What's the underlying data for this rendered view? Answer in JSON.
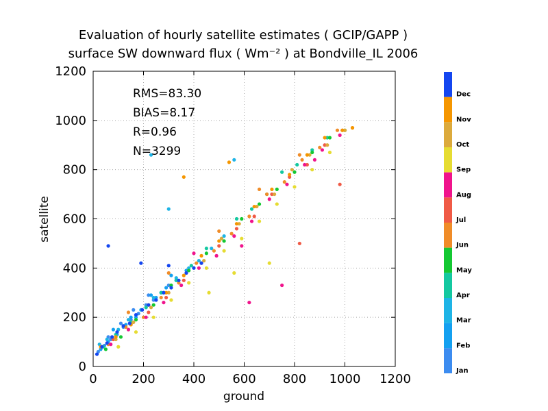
{
  "chart_data": {
    "type": "scatter",
    "title": "Evaluation of hourly satellite estimates ( GCIP/GAPP )",
    "subtitle": "surface SW downward flux ( Wm⁻² ) at Bondville_IL 2006",
    "xlabel": "ground",
    "ylabel": "satellite",
    "xlim": [
      0,
      1200
    ],
    "ylim": [
      0,
      1200
    ],
    "xticks": [
      "0",
      "200",
      "400",
      "600",
      "800",
      "1000",
      "1200"
    ],
    "yticks": [
      "0",
      "200",
      "400",
      "600",
      "800",
      "1000",
      "1200"
    ],
    "grid": true,
    "stats": [
      "RMS=83.30",
      "BIAS=8.17",
      "R=0.96",
      "N=3299"
    ],
    "legend_placement": "right",
    "legend": [
      {
        "label": "Jan",
        "color": "#3c8cf0"
      },
      {
        "label": "Feb",
        "color": "#14a0f0"
      },
      {
        "label": "Mar",
        "color": "#1eb4e6"
      },
      {
        "label": "Apr",
        "color": "#14c8a0"
      },
      {
        "label": "May",
        "color": "#14c832"
      },
      {
        "label": "Jun",
        "color": "#f08c28"
      },
      {
        "label": "Jul",
        "color": "#f05a46"
      },
      {
        "label": "Aug",
        "color": "#f0148c"
      },
      {
        "label": "Sep",
        "color": "#e6dc32"
      },
      {
        "label": "Oct",
        "color": "#dcaa3c"
      },
      {
        "label": "Nov",
        "color": "#f59600"
      },
      {
        "label": "Dec",
        "color": "#1446f0"
      }
    ],
    "series": [
      {
        "month": "Jan",
        "x": [
          20,
          45,
          70,
          95,
          120,
          150,
          180,
          210,
          240,
          270,
          300,
          60,
          110,
          160,
          220
        ],
        "y": [
          60,
          85,
          110,
          130,
          160,
          190,
          215,
          250,
          270,
          300,
          330,
          120,
          175,
          230,
          290
        ]
      },
      {
        "month": "Feb",
        "x": [
          30,
          60,
          90,
          130,
          170,
          210,
          250,
          290,
          330,
          370,
          80,
          150,
          230,
          310
        ],
        "y": [
          70,
          100,
          120,
          170,
          200,
          240,
          280,
          320,
          350,
          390,
          150,
          200,
          290,
          370
        ]
      },
      {
        "month": "Mar",
        "x": [
          25,
          55,
          100,
          140,
          190,
          240,
          280,
          330,
          380,
          420,
          470,
          520,
          230,
          300,
          560
        ],
        "y": [
          90,
          110,
          150,
          190,
          230,
          280,
          300,
          360,
          400,
          430,
          480,
          530,
          860,
          640,
          840
        ]
      },
      {
        "month": "Apr",
        "x": [
          40,
          90,
          150,
          210,
          270,
          330,
          390,
          450,
          510,
          570,
          630,
          690,
          750,
          810,
          870,
          930
        ],
        "y": [
          80,
          130,
          180,
          240,
          300,
          350,
          410,
          480,
          520,
          600,
          640,
          700,
          790,
          820,
          880,
          930
        ]
      },
      {
        "month": "May",
        "x": [
          50,
          110,
          170,
          240,
          310,
          380,
          450,
          520,
          590,
          660,
          730,
          800,
          870,
          940,
          1000
        ],
        "y": [
          70,
          120,
          190,
          250,
          330,
          390,
          460,
          510,
          600,
          660,
          720,
          790,
          870,
          930,
          960
        ]
      },
      {
        "month": "Jun",
        "x": [
          60,
          130,
          200,
          270,
          340,
          410,
          480,
          550,
          620,
          690,
          760,
          830,
          900,
          970,
          1030,
          140,
          300,
          500,
          660,
          820
        ],
        "y": [
          90,
          160,
          200,
          280,
          340,
          420,
          470,
          540,
          610,
          700,
          750,
          840,
          890,
          960,
          970,
          220,
          380,
          550,
          720,
          860
        ]
      },
      {
        "month": "Jul",
        "x": [
          80,
          150,
          220,
          290,
          360,
          430,
          500,
          570,
          640,
          710,
          780,
          850,
          920,
          990,
          820,
          980
        ],
        "y": [
          110,
          170,
          220,
          280,
          350,
          420,
          490,
          560,
          610,
          700,
          770,
          820,
          900,
          960,
          500,
          740
        ]
      },
      {
        "month": "Aug",
        "x": [
          70,
          140,
          210,
          280,
          350,
          420,
          490,
          560,
          630,
          700,
          770,
          840,
          910,
          980,
          620,
          750,
          400,
          590,
          880
        ],
        "y": [
          90,
          150,
          200,
          260,
          330,
          400,
          450,
          530,
          590,
          680,
          740,
          820,
          880,
          940,
          260,
          330,
          460,
          490,
          840
        ]
      },
      {
        "month": "Sep",
        "x": [
          100,
          170,
          240,
          310,
          380,
          450,
          520,
          590,
          660,
          730,
          800,
          870,
          940,
          460,
          560,
          700
        ],
        "y": [
          80,
          140,
          200,
          270,
          340,
          400,
          470,
          520,
          590,
          660,
          730,
          800,
          870,
          300,
          380,
          420
        ]
      },
      {
        "month": "Oct",
        "x": [
          90,
          160,
          230,
          300,
          370,
          440,
          510,
          580,
          650,
          720,
          790,
          860,
          930,
          1000
        ],
        "y": [
          110,
          180,
          240,
          300,
          380,
          430,
          520,
          580,
          650,
          700,
          800,
          860,
          900,
          960
        ]
      },
      {
        "month": "Nov",
        "x": [
          30,
          90,
          150,
          220,
          290,
          360,
          430,
          500,
          570,
          640,
          710,
          780,
          850,
          920,
          990,
          1030,
          360,
          540
        ],
        "y": [
          80,
          120,
          170,
          250,
          300,
          370,
          450,
          510,
          580,
          650,
          720,
          780,
          860,
          930,
          960,
          970,
          770,
          830
        ]
      },
      {
        "month": "Dec",
        "x": [
          15,
          35,
          55,
          75,
          95,
          120,
          145,
          170,
          195,
          220,
          250,
          280,
          310,
          340,
          370,
          400,
          430,
          60,
          190,
          300
        ],
        "y": [
          50,
          80,
          95,
          120,
          140,
          165,
          175,
          210,
          230,
          250,
          270,
          300,
          320,
          350,
          380,
          400,
          420,
          490,
          420,
          410
        ]
      }
    ]
  }
}
